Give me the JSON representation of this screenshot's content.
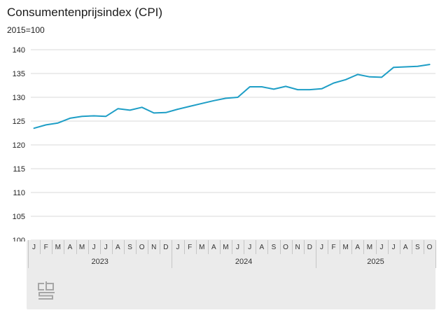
{
  "header": {
    "title": "Consumentenprijsindex (CPI)",
    "subtitle": "2015=100"
  },
  "chart_data": {
    "type": "line",
    "title": "Consumentenprijsindex (CPI)",
    "subtitle": "2015=100",
    "ylabel": "",
    "xlabel": "",
    "ylim": [
      100,
      140
    ],
    "yticks": [
      100,
      105,
      110,
      115,
      120,
      125,
      130,
      135,
      140
    ],
    "grid": true,
    "legend_position": "none",
    "line_color": "#1e9ec6",
    "grid_color": "#d9d9d9",
    "month_letters": [
      "J",
      "F",
      "M",
      "A",
      "M",
      "J",
      "J",
      "A",
      "S",
      "O",
      "N",
      "D",
      "J",
      "F",
      "M",
      "A",
      "M",
      "J",
      "J",
      "A",
      "S",
      "O",
      "N",
      "D",
      "J",
      "F",
      "M",
      "A",
      "M",
      "J",
      "J",
      "A",
      "S",
      "O"
    ],
    "year_groups": [
      {
        "label": "2023",
        "start": 0,
        "months": 12
      },
      {
        "label": "2024",
        "start": 12,
        "months": 12
      },
      {
        "label": "2025",
        "start": 24,
        "months": 10
      }
    ],
    "series": [
      {
        "name": "CPI",
        "values": [
          123.5,
          124.2,
          124.6,
          125.6,
          126.0,
          126.1,
          126.0,
          127.6,
          127.3,
          127.9,
          126.7,
          126.8,
          127.5,
          128.1,
          128.7,
          129.3,
          129.8,
          130.0,
          132.2,
          132.2,
          131.7,
          132.3,
          131.6,
          131.6,
          131.8,
          133.0,
          133.7,
          134.8,
          134.3,
          134.2,
          136.3,
          136.4,
          136.5,
          136.9
        ]
      }
    ]
  },
  "logo": {
    "label": "cbs"
  }
}
